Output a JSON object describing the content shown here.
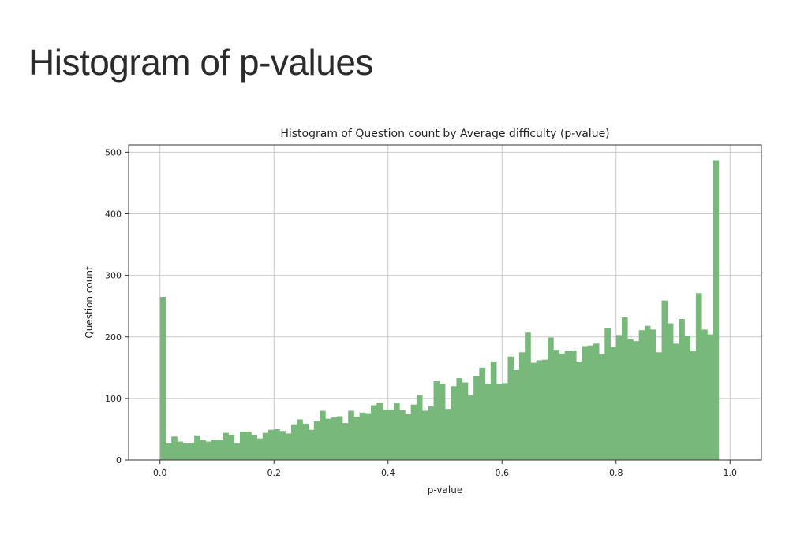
{
  "slide": {
    "title": "Histogram of p-values"
  },
  "chart_data": {
    "type": "bar",
    "title": "Histogram of Question count by Average difficulty (p-value)",
    "xlabel": "p-value",
    "ylabel": "Question count",
    "xlim": [
      -0.055,
      1.055
    ],
    "ylim": [
      0,
      512
    ],
    "xticks": [
      "0.0",
      "0.2",
      "0.4",
      "0.6",
      "0.8",
      "1.0"
    ],
    "yticks": [
      "0",
      "100",
      "200",
      "300",
      "400",
      "500"
    ],
    "grid": true,
    "bar_color": "#78b87a",
    "bins": 100,
    "bin_range": [
      0,
      1
    ],
    "values": [
      265,
      27,
      38,
      30,
      27,
      28,
      40,
      33,
      30,
      33,
      33,
      44,
      41,
      27,
      46,
      46,
      41,
      35,
      44,
      49,
      50,
      47,
      43,
      58,
      66,
      59,
      49,
      63,
      80,
      67,
      69,
      71,
      60,
      80,
      70,
      77,
      76,
      89,
      93,
      82,
      82,
      92,
      81,
      75,
      90,
      105,
      80,
      87,
      128,
      124,
      83,
      120,
      133,
      126,
      105,
      137,
      150,
      124,
      160,
      123,
      125,
      168,
      146,
      175,
      207,
      158,
      162,
      163,
      199,
      179,
      173,
      177,
      178,
      160,
      185,
      186,
      189,
      172,
      215,
      184,
      203,
      232,
      196,
      193,
      211,
      218,
      212,
      175,
      259,
      222,
      189,
      229,
      202,
      177,
      271,
      212,
      204,
      487,
      0,
      0
    ]
  }
}
